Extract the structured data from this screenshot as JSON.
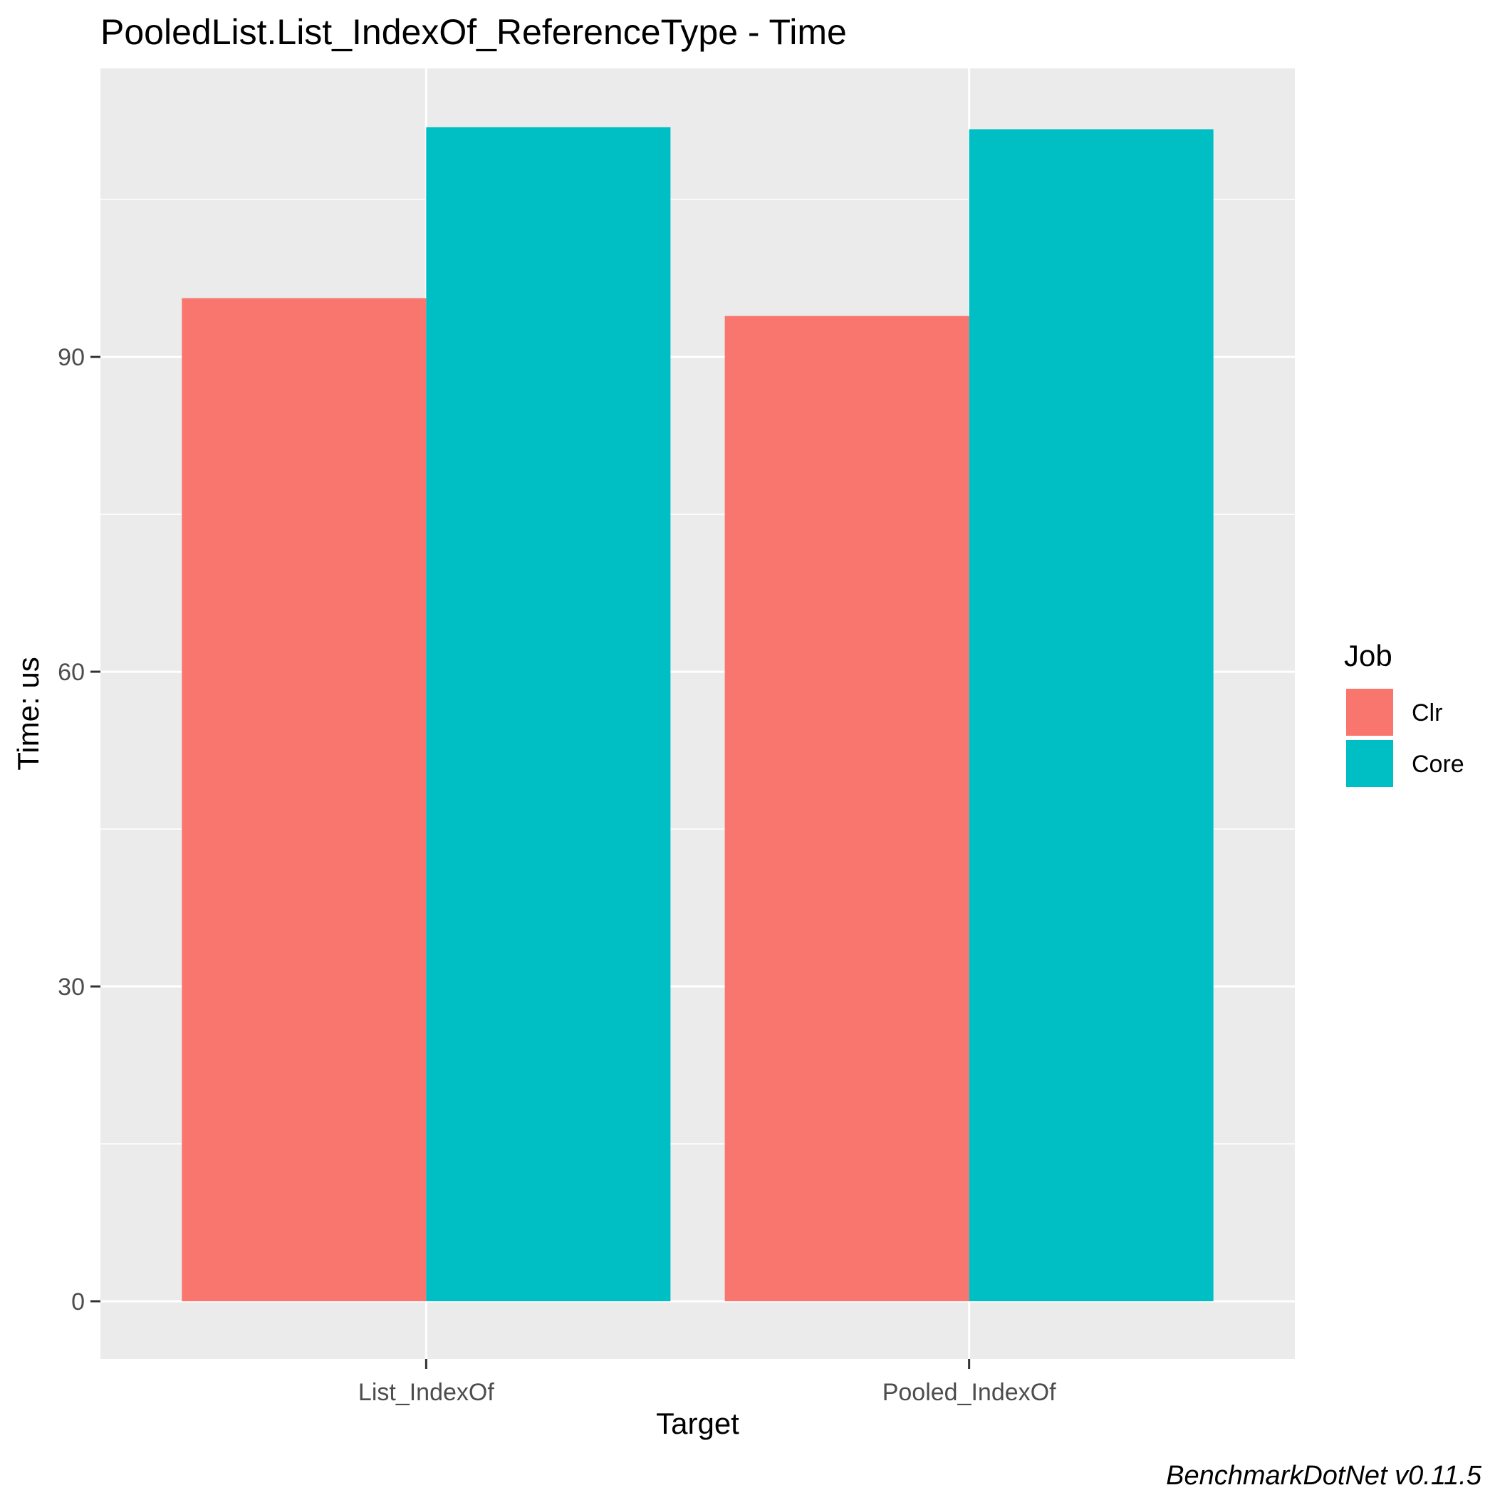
{
  "chart_data": {
    "type": "bar",
    "title": "PooledList.List_IndexOf_ReferenceType - Time",
    "xlabel": "Target",
    "ylabel": "Time: us",
    "categories": [
      "List_IndexOf",
      "Pooled_IndexOf"
    ],
    "series": [
      {
        "name": "Clr",
        "color": "#F8766D",
        "values": [
          95.6,
          93.9
        ]
      },
      {
        "name": "Core",
        "color": "#00BFC4",
        "values": [
          111.9,
          111.7
        ]
      }
    ],
    "ylim": [
      -5.5,
      117.5
    ],
    "yticks": [
      0,
      30,
      60,
      90
    ],
    "yticklabels": [
      "0",
      "30",
      "60",
      "90"
    ],
    "grid": true,
    "legend": {
      "title": "Job",
      "placement": "right"
    },
    "caption": "BenchmarkDotNet v0.11.5",
    "panel_color": "#EBEBEB",
    "grid_color": "#FFFFFF"
  }
}
